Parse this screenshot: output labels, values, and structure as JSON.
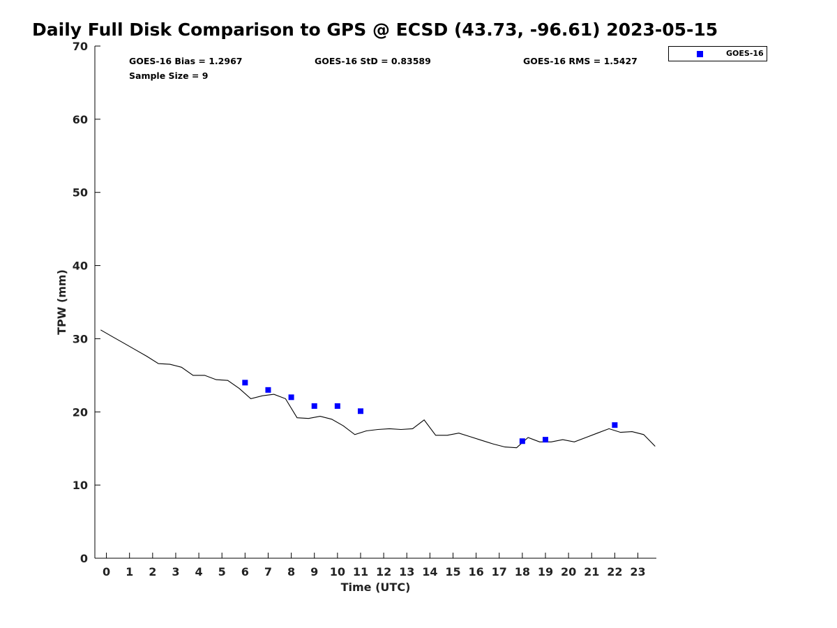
{
  "chart_data": {
    "type": "line",
    "title": "Daily Full Disk Comparison to GPS @ ECSD (43.73, -96.61) 2023-05-15",
    "xlabel": "Time (UTC)",
    "ylabel": "TPW (mm)",
    "xlim": [
      -0.5,
      23.8
    ],
    "ylim": [
      0,
      70
    ],
    "xticks": [
      0,
      1,
      2,
      3,
      4,
      5,
      6,
      7,
      8,
      9,
      10,
      11,
      12,
      13,
      14,
      15,
      16,
      17,
      18,
      19,
      20,
      21,
      22,
      23
    ],
    "yticks": [
      0,
      10,
      20,
      30,
      40,
      50,
      60,
      70
    ],
    "grid": false,
    "legend_position": "top-right",
    "stats": {
      "bias": "GOES-16 Bias = 1.2967",
      "std": "GOES-16 StD = 0.83589",
      "rms": "GOES-16 RMS = 1.5427",
      "sample_size": "Sample Size = 9"
    },
    "series": [
      {
        "kind": "line",
        "color": "#000000",
        "x": [
          -0.25,
          0.25,
          0.75,
          1.25,
          1.75,
          2.25,
          2.75,
          3.25,
          3.75,
          4.25,
          4.75,
          5.25,
          5.75,
          6.25,
          6.75,
          7.25,
          7.75,
          8.25,
          8.75,
          9.25,
          9.75,
          10.25,
          10.75,
          11.25,
          11.75,
          12.25,
          12.75,
          13.25,
          13.75,
          14.25,
          14.75,
          15.25,
          15.75,
          16.25,
          16.75,
          17.25,
          17.75,
          18.25,
          18.75,
          19.25,
          19.75,
          20.25,
          20.75,
          21.25,
          21.75,
          22.25,
          22.75,
          23.25,
          23.75
        ],
        "y": [
          31.2,
          30.3,
          29.4,
          28.5,
          27.6,
          26.6,
          26.5,
          26.1,
          25.0,
          25.0,
          24.4,
          24.3,
          23.2,
          21.8,
          22.2,
          22.4,
          21.8,
          19.2,
          19.1,
          19.4,
          19.0,
          18.1,
          16.9,
          17.4,
          17.6,
          17.7,
          17.6,
          17.7,
          18.9,
          16.8,
          16.8,
          17.1,
          16.6,
          16.1,
          15.6,
          15.2,
          15.1,
          16.5,
          15.9,
          15.9,
          16.2,
          15.9,
          16.5,
          17.1,
          17.7,
          17.2,
          17.3,
          16.9,
          15.3
        ]
      },
      {
        "kind": "scatter",
        "name": "GOES-16",
        "color": "#0000ff",
        "marker": "square",
        "x": [
          6,
          7,
          8,
          9,
          10,
          11,
          18,
          19,
          22
        ],
        "y": [
          24.0,
          23.0,
          22.0,
          20.8,
          20.8,
          20.1,
          16.0,
          16.2,
          18.2
        ]
      }
    ]
  }
}
